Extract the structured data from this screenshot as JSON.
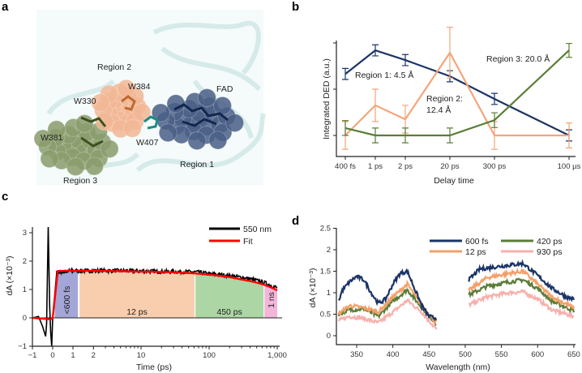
{
  "panel_labels": [
    "a",
    "b",
    "c",
    "d"
  ],
  "panel_a": {
    "labels": {
      "region2": "Region 2",
      "w384": "W384",
      "fad": "FAD",
      "w330": "W330",
      "w381": "W381",
      "w407": "W407",
      "region1": "Region 1",
      "region3": "Region 3"
    },
    "colors": {
      "region1": "#4a5f86",
      "region2": "#f2b896",
      "region3": "#8a9d6c",
      "protein": "#cfe8e6"
    }
  },
  "chart_data": [
    {
      "id": "b",
      "type": "line",
      "title": "",
      "xlabel": "Delay time",
      "ylabel": "Integrated DED (a.u.)",
      "categories": [
        "400 fs",
        "1 ps",
        "2 ps",
        "20 ps",
        "300 ps",
        "100 µs"
      ],
      "ylim": [
        -0.46,
        2.05
      ],
      "yticks": [
        0,
        1,
        2
      ],
      "series": [
        {
          "name": "Region 1: 4.5 Å",
          "color": "#1b3466",
          "values": [
            1.33,
            1.84,
            1.63,
            1.28,
            0.79,
            0.0
          ],
          "errors": [
            0.12,
            0.12,
            0.12,
            0.12,
            0.12,
            0.12
          ]
        },
        {
          "name": "Region 2: 12.4 Å",
          "color": "#f4a57a",
          "values": [
            0.0,
            0.65,
            0.35,
            1.79,
            0.0,
            0.0
          ],
          "errors": [
            0.3,
            0.35,
            0.3,
            0.55,
            0.3,
            0.27
          ]
        },
        {
          "name": "Region 3: 20.0 Å",
          "color": "#5b7d38",
          "values": [
            0.16,
            0.0,
            0.0,
            0.0,
            0.33,
            1.84
          ],
          "errors": [
            0.16,
            0.16,
            0.16,
            0.16,
            0.16,
            0.15
          ]
        }
      ],
      "annotations": {
        "region1": "Region 1: 4.5 Å",
        "region2_line1": "Region 2:",
        "region2_line2": "12.4 Å",
        "region3": "Region 3: 20.0 Å"
      }
    },
    {
      "id": "c",
      "type": "line",
      "xlabel": "Time (ps)",
      "ylabel": "dA (×10⁻³)",
      "xscale": "linear from -1 to 1, log from 1 to 1000",
      "xticks": [
        -1,
        0,
        1,
        2,
        10,
        100,
        1000
      ],
      "xtick_labels": [
        "−1",
        "0",
        "1",
        "2",
        "10",
        "100",
        "1,000"
      ],
      "ylim": [
        -1,
        3.2
      ],
      "yticks": [
        -1,
        0,
        1,
        2,
        3
      ],
      "ytick_labels": [
        "−1",
        "0",
        "1",
        "2",
        "3"
      ],
      "legend": "top-right",
      "series": [
        {
          "name": "550 nm",
          "color": "#000000",
          "points": [
            [
              -1,
              0
            ],
            [
              -0.7,
              0.05
            ],
            [
              -0.5,
              -0.3
            ],
            [
              -0.35,
              -0.65
            ],
            [
              -0.3,
              -0.2
            ],
            [
              -0.22,
              3.2
            ],
            [
              -0.15,
              0.4
            ],
            [
              -0.1,
              -0.5
            ],
            [
              -0.05,
              -1.0
            ],
            [
              0,
              0
            ],
            [
              0.2,
              1.6
            ],
            [
              1,
              1.66
            ],
            [
              5,
              1.66
            ],
            [
              20,
              1.63
            ],
            [
              60,
              1.62
            ],
            [
              100,
              1.55
            ],
            [
              300,
              1.42
            ],
            [
              1000,
              1.05
            ]
          ]
        },
        {
          "name": "Fit",
          "color": "#ff0000",
          "points": [
            [
              -1,
              0
            ],
            [
              -0.1,
              -0.05
            ],
            [
              0,
              0
            ],
            [
              0.25,
              1.65
            ],
            [
              1,
              1.66
            ],
            [
              10,
              1.63
            ],
            [
              50,
              1.58
            ],
            [
              100,
              1.52
            ],
            [
              300,
              1.35
            ],
            [
              1000,
              0.97
            ]
          ]
        }
      ],
      "regions": [
        {
          "label": "<600 fs",
          "from": 0.1,
          "to": 1.18,
          "color": "#a3a6d6",
          "rotated": true
        },
        {
          "label": "12 ps",
          "from": 1.25,
          "to": 61,
          "color": "#f9ceae",
          "rotated": false
        },
        {
          "label": "450 ps",
          "from": 63,
          "to": 630,
          "color": "#acd6a4",
          "rotated": false
        },
        {
          "label": "1 ns",
          "from": 650,
          "to": 1000,
          "color": "#f3b6da",
          "rotated": true
        }
      ]
    },
    {
      "id": "d",
      "type": "line",
      "xlabel": "Wavelength (nm)",
      "ylabel": "dA (×10⁻³)",
      "xlim": [
        325,
        650
      ],
      "xticks": [
        350,
        400,
        450,
        500,
        550,
        600,
        650
      ],
      "ylim": [
        -0.2,
        2.5
      ],
      "yticks": [
        0,
        0.5,
        1,
        1.5,
        2,
        2.5
      ],
      "ytick_labels": [
        "0",
        "0.5",
        "1",
        "1.5",
        "2",
        "2.5"
      ],
      "legend": "top-right",
      "series": [
        {
          "name": "600 fs",
          "color": "#1b3466",
          "segments": [
            [
              [
                325,
                0.8
              ],
              [
                330,
                1.05
              ],
              [
                340,
                1.25
              ],
              [
                350,
                1.38
              ],
              [
                360,
                1.3
              ],
              [
                370,
                1.0
              ],
              [
                380,
                0.75
              ],
              [
                390,
                0.85
              ],
              [
                400,
                1.2
              ],
              [
                410,
                1.45
              ],
              [
                420,
                1.5
              ],
              [
                430,
                1.1
              ],
              [
                440,
                0.7
              ],
              [
                450,
                0.45
              ],
              [
                460,
                0.4
              ]
            ],
            [
              [
                505,
                1.3
              ],
              [
                520,
                1.55
              ],
              [
                550,
                1.62
              ],
              [
                580,
                1.68
              ],
              [
                600,
                1.4
              ],
              [
                620,
                1.1
              ],
              [
                640,
                0.9
              ],
              [
                650,
                0.85
              ]
            ]
          ]
        },
        {
          "name": "12 ps",
          "color": "#f4a06a",
          "segments": [
            [
              [
                325,
                0.5
              ],
              [
                340,
                0.7
              ],
              [
                360,
                0.65
              ],
              [
                380,
                0.55
              ],
              [
                400,
                0.9
              ],
              [
                420,
                1.2
              ],
              [
                440,
                0.7
              ],
              [
                460,
                0.3
              ]
            ],
            [
              [
                505,
                1.05
              ],
              [
                530,
                1.35
              ],
              [
                560,
                1.45
              ],
              [
                580,
                1.5
              ],
              [
                600,
                1.2
              ],
              [
                620,
                0.9
              ],
              [
                650,
                0.65
              ]
            ]
          ]
        },
        {
          "name": "420 ps",
          "color": "#5b7d38",
          "segments": [
            [
              [
                325,
                0.5
              ],
              [
                340,
                0.6
              ],
              [
                360,
                0.62
              ],
              [
                380,
                0.45
              ],
              [
                400,
                0.8
              ],
              [
                420,
                1.07
              ],
              [
                440,
                0.65
              ],
              [
                460,
                0.28
              ]
            ],
            [
              [
                505,
                0.95
              ],
              [
                530,
                1.15
              ],
              [
                560,
                1.25
              ],
              [
                580,
                1.3
              ],
              [
                600,
                1.1
              ],
              [
                620,
                0.8
              ],
              [
                650,
                0.58
              ]
            ]
          ]
        },
        {
          "name": "930 ps",
          "color": "#f7b0ac",
          "segments": [
            [
              [
                325,
                0.35
              ],
              [
                340,
                0.45
              ],
              [
                360,
                0.4
              ],
              [
                380,
                0.3
              ],
              [
                400,
                0.55
              ],
              [
                420,
                0.82
              ],
              [
                440,
                0.55
              ],
              [
                460,
                0.15
              ]
            ],
            [
              [
                505,
                0.72
              ],
              [
                530,
                0.9
              ],
              [
                560,
                1.0
              ],
              [
                580,
                1.02
              ],
              [
                600,
                0.85
              ],
              [
                620,
                0.6
              ],
              [
                650,
                0.45
              ]
            ]
          ]
        }
      ]
    }
  ]
}
